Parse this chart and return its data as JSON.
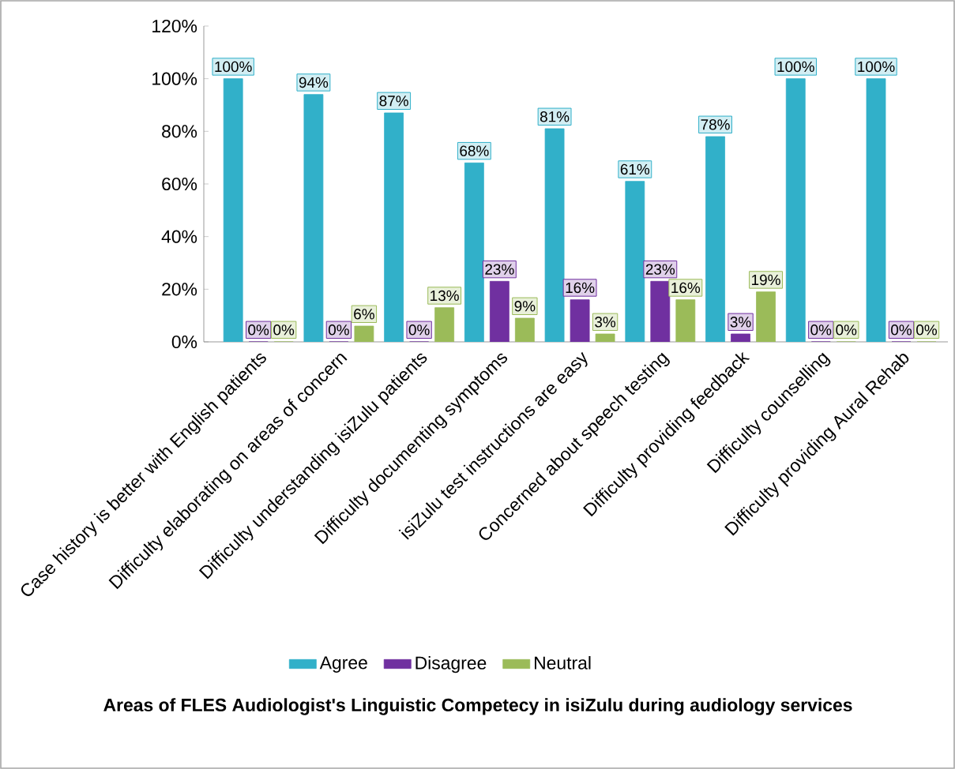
{
  "chart_data": {
    "type": "bar",
    "title": "Areas of FLES Audiologist's Linguistic Competecy in isiZulu during audiology services",
    "categories": [
      "Case history is better with English patients",
      "Difficulty elaborating on areas of concern",
      "Difficulty understanding  isiZulu patients",
      "Difficulty documenting symptoms",
      "isiZulu test instructions are easy",
      "Concerned about speech testing",
      "Difficulty providing feedback",
      "Difficulty counselling",
      "Difficulty providing Aural Rehab"
    ],
    "series": [
      {
        "name": "Agree",
        "color": "#31b0c9",
        "values": [
          100,
          94,
          87,
          68,
          81,
          61,
          78,
          100,
          100
        ],
        "value_labels": [
          "100%",
          "94%",
          "87%",
          "68%",
          "81%",
          "61%",
          "78%",
          "100%",
          "100%"
        ]
      },
      {
        "name": "Disagree",
        "color": "#7030a0",
        "values": [
          0,
          0,
          0,
          23,
          16,
          23,
          3,
          0,
          0
        ],
        "value_labels": [
          "0%",
          "0%",
          "0%",
          "23%",
          "16%",
          "23%",
          "3%",
          "0%",
          "0%"
        ]
      },
      {
        "name": "Neutral",
        "color": "#9bbb59",
        "values": [
          0,
          6,
          13,
          9,
          3,
          16,
          19,
          0,
          0
        ],
        "value_labels": [
          "0%",
          "6%",
          "13%",
          "9%",
          "3%",
          "16%",
          "19%",
          "0%",
          "0%"
        ]
      }
    ],
    "ylim": [
      0,
      120
    ],
    "yticks": [
      {
        "value": 0,
        "label": "0%"
      },
      {
        "value": 20,
        "label": "20%"
      },
      {
        "value": 40,
        "label": "40%"
      },
      {
        "value": 60,
        "label": "60%"
      },
      {
        "value": 80,
        "label": "80%"
      },
      {
        "value": 100,
        "label": "100%"
      },
      {
        "value": 120,
        "label": "120%"
      }
    ],
    "grid": false,
    "legend": "bottom"
  }
}
